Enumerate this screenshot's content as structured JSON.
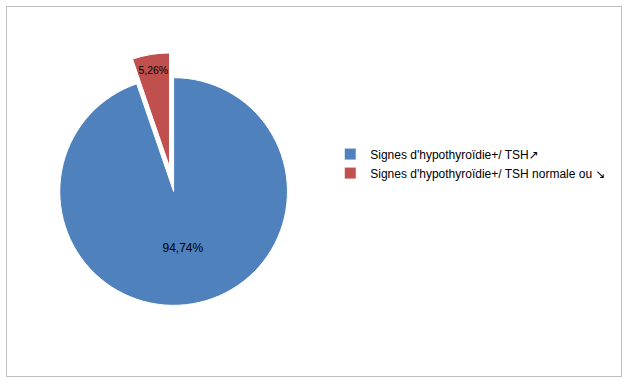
{
  "chart_data": {
    "type": "pie",
    "categories": [
      "Signes d'hypothyroïdie+/ TSH↗",
      "Signes d'hypothyroïdie+/ TSH normale ou ↘"
    ],
    "values": [
      94.74,
      5.26
    ],
    "value_labels": [
      "94,74%",
      "5,26%"
    ],
    "colors": [
      "#4f81bd",
      "#c0504d"
    ],
    "data_labels": true,
    "legend": "right"
  }
}
